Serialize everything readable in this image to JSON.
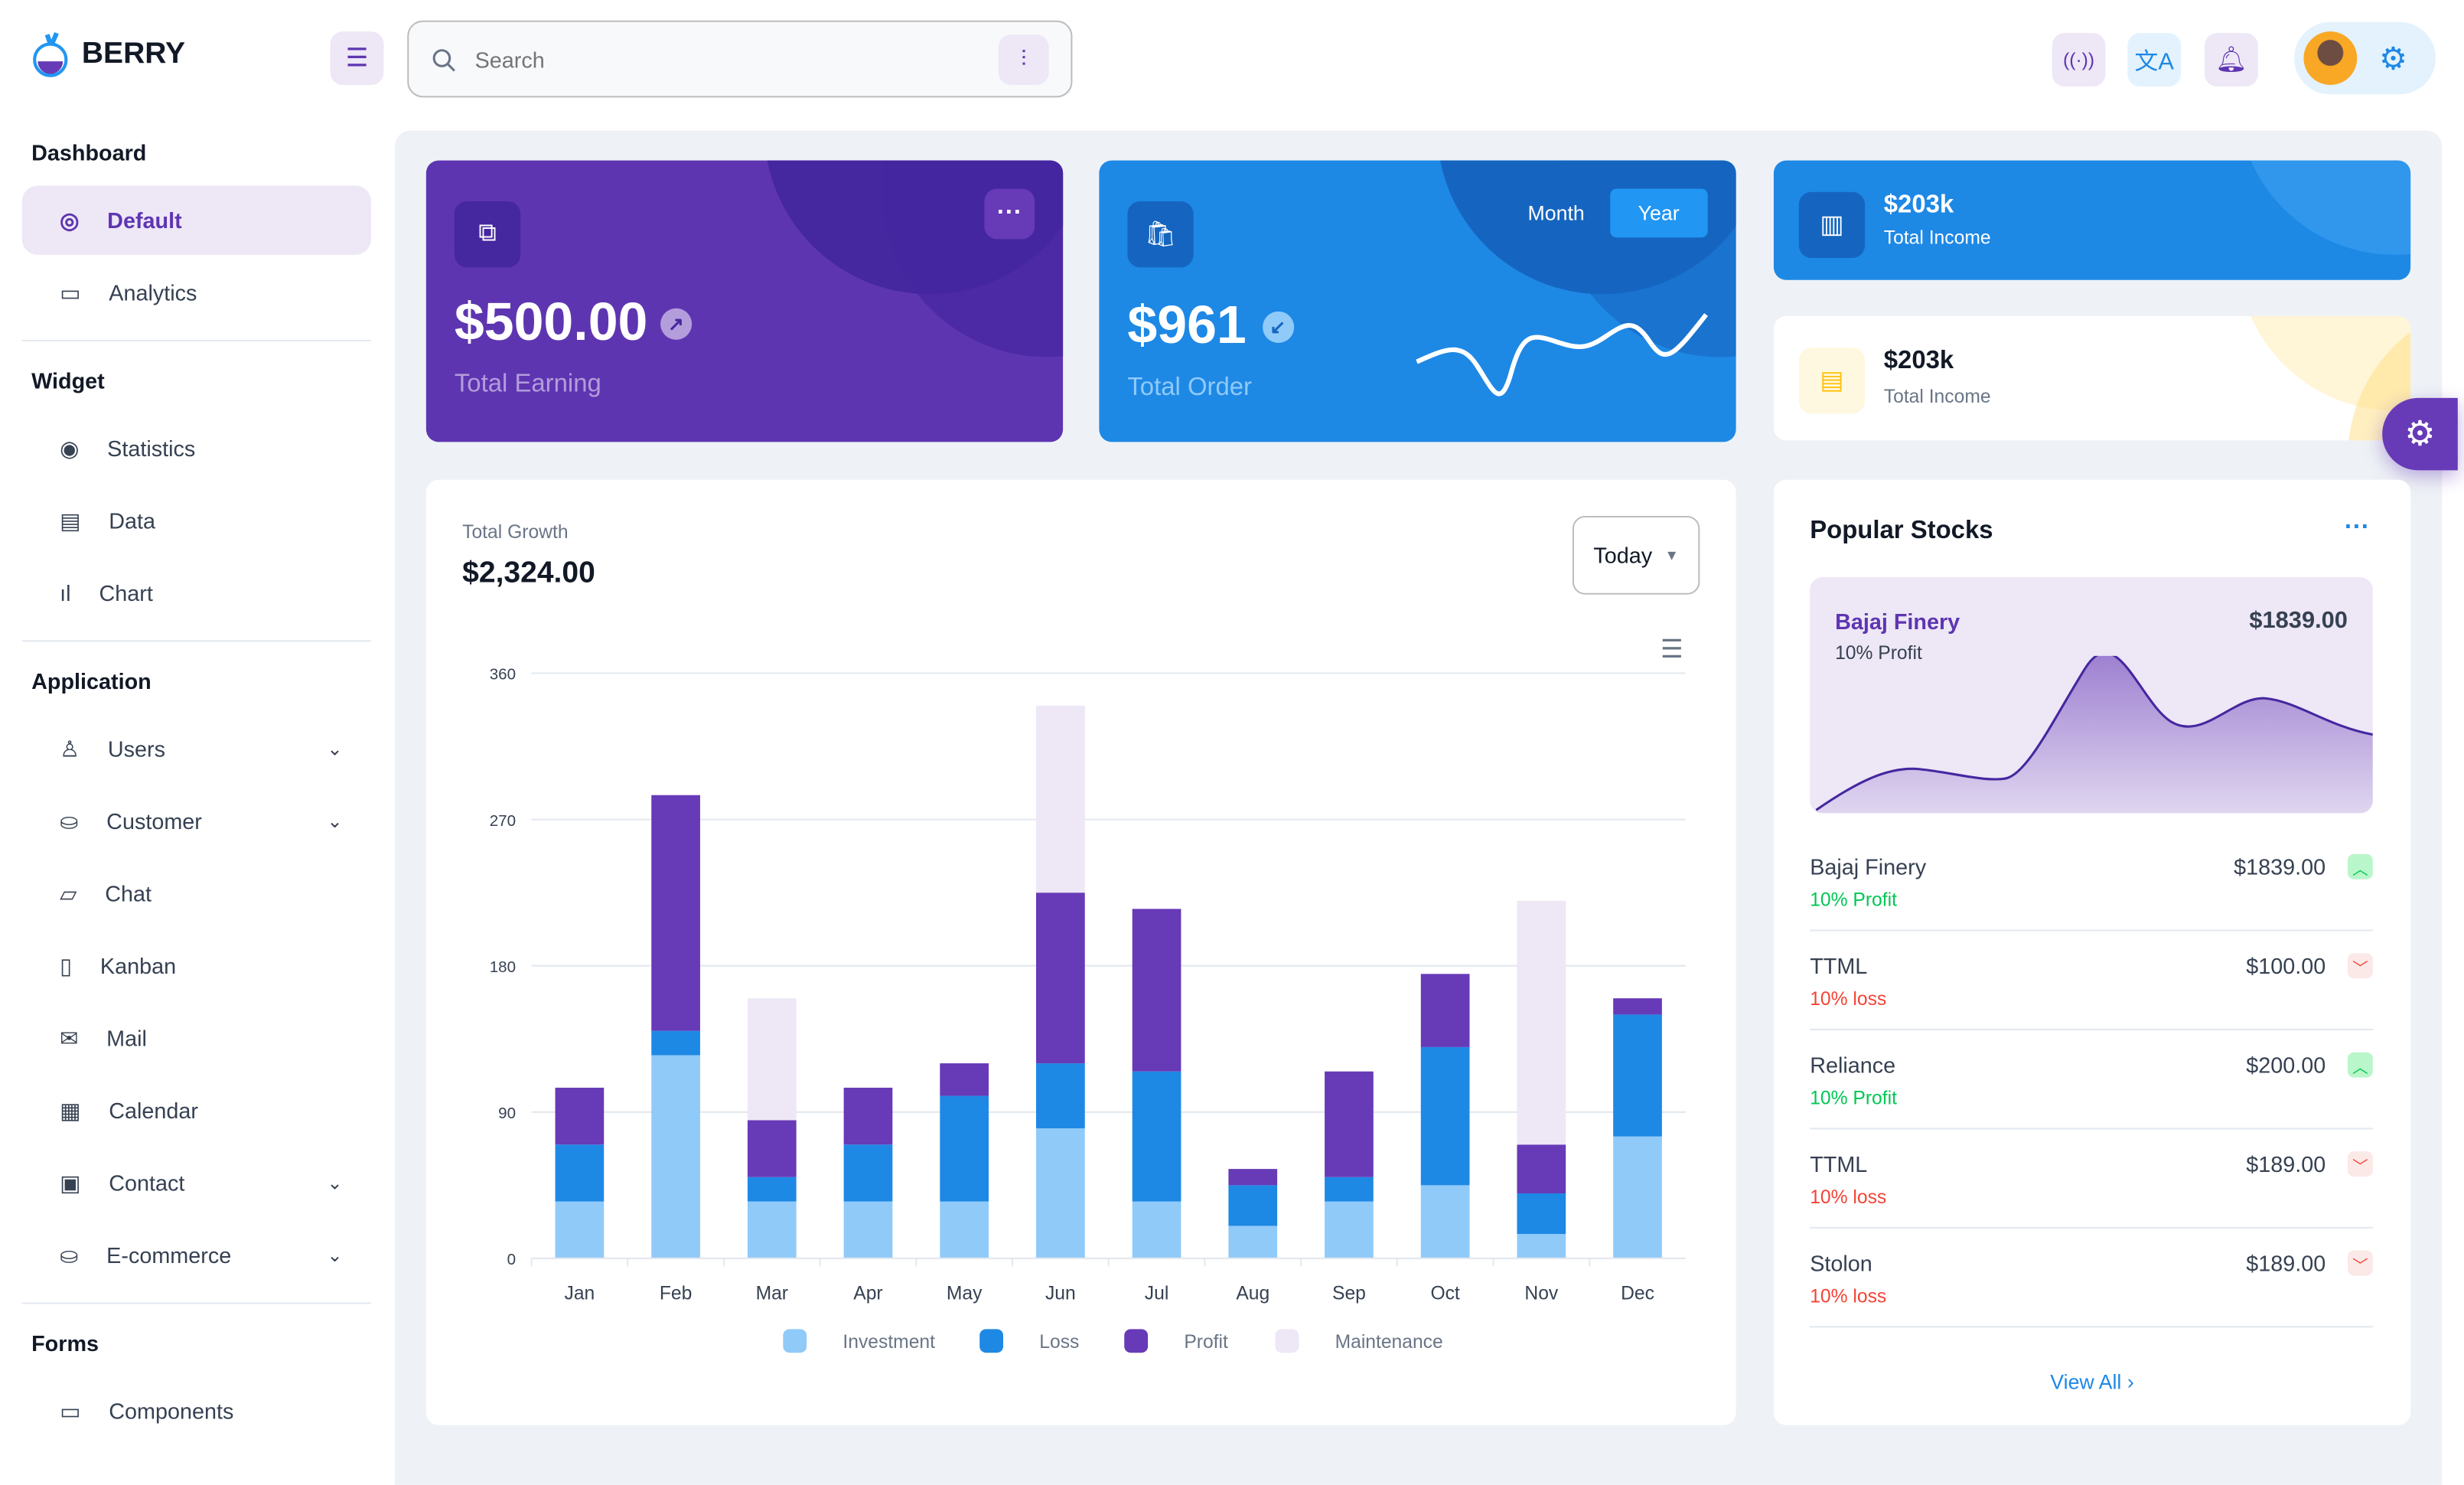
{
  "brand": {
    "name": "BERRY"
  },
  "header": {
    "search_placeholder": "Search"
  },
  "sidebar": {
    "sections": [
      {
        "title": "Dashboard",
        "items": [
          {
            "label": "Default",
            "active": true
          },
          {
            "label": "Analytics"
          }
        ]
      },
      {
        "title": "Widget",
        "items": [
          {
            "label": "Statistics"
          },
          {
            "label": "Data"
          },
          {
            "label": "Chart"
          }
        ]
      },
      {
        "title": "Application",
        "items": [
          {
            "label": "Users"
          },
          {
            "label": "Customer"
          },
          {
            "label": "Chat"
          },
          {
            "label": "Kanban"
          },
          {
            "label": "Mail"
          },
          {
            "label": "Calendar"
          },
          {
            "label": "Contact"
          },
          {
            "label": "E-commerce"
          }
        ]
      },
      {
        "title": "Forms",
        "items": [
          {
            "label": "Components"
          }
        ]
      }
    ]
  },
  "earning": {
    "value": "$500.00",
    "label": "Total Earning"
  },
  "order": {
    "value": "$961",
    "label": "Total Order",
    "toggle": [
      "Month",
      "Year"
    ],
    "selected": "Year"
  },
  "income_blue": {
    "value": "$203k",
    "label": "Total Income"
  },
  "income_white": {
    "value": "$203k",
    "label": "Total Income"
  },
  "growth": {
    "title": "Total Growth",
    "value": "$2,324.00",
    "period": "Today"
  },
  "chart_data": {
    "type": "bar",
    "stacked": true,
    "categories": [
      "Jan",
      "Feb",
      "Mar",
      "Apr",
      "May",
      "Jun",
      "Jul",
      "Aug",
      "Sep",
      "Oct",
      "Nov",
      "Dec"
    ],
    "yticks": [
      0,
      90,
      180,
      270,
      360
    ],
    "ylim": [
      0,
      360
    ],
    "grid": true,
    "legend": "bottom",
    "series": [
      {
        "name": "Investment",
        "color": "#90caf9",
        "values": [
          35,
          125,
          35,
          35,
          35,
          80,
          35,
          20,
          35,
          45,
          15,
          75
        ]
      },
      {
        "name": "Loss",
        "color": "#1e88e5",
        "values": [
          35,
          15,
          15,
          35,
          65,
          40,
          80,
          25,
          15,
          85,
          25,
          75
        ]
      },
      {
        "name": "Profit",
        "color": "#673ab7",
        "values": [
          35,
          145,
          35,
          35,
          20,
          105,
          100,
          10,
          65,
          45,
          30,
          10
        ]
      },
      {
        "name": "Maintenance",
        "color": "#ede7f6",
        "values": [
          0,
          0,
          75,
          0,
          0,
          115,
          0,
          0,
          0,
          0,
          150,
          0
        ]
      }
    ]
  },
  "stocks": {
    "title": "Popular Stocks",
    "featured": {
      "name": "Bajaj Finery",
      "sub": "10% Profit",
      "value": "$1839.00"
    },
    "items": [
      {
        "name": "Bajaj Finery",
        "value": "$1839.00",
        "sub": "10% Profit",
        "up": true
      },
      {
        "name": "TTML",
        "value": "$100.00",
        "sub": "10% loss",
        "up": false
      },
      {
        "name": "Reliance",
        "value": "$200.00",
        "sub": "10% Profit",
        "up": true
      },
      {
        "name": "TTML",
        "value": "$189.00",
        "sub": "10% loss",
        "up": false
      },
      {
        "name": "Stolon",
        "value": "$189.00",
        "sub": "10% loss",
        "up": false
      }
    ],
    "view_all": "View All"
  }
}
